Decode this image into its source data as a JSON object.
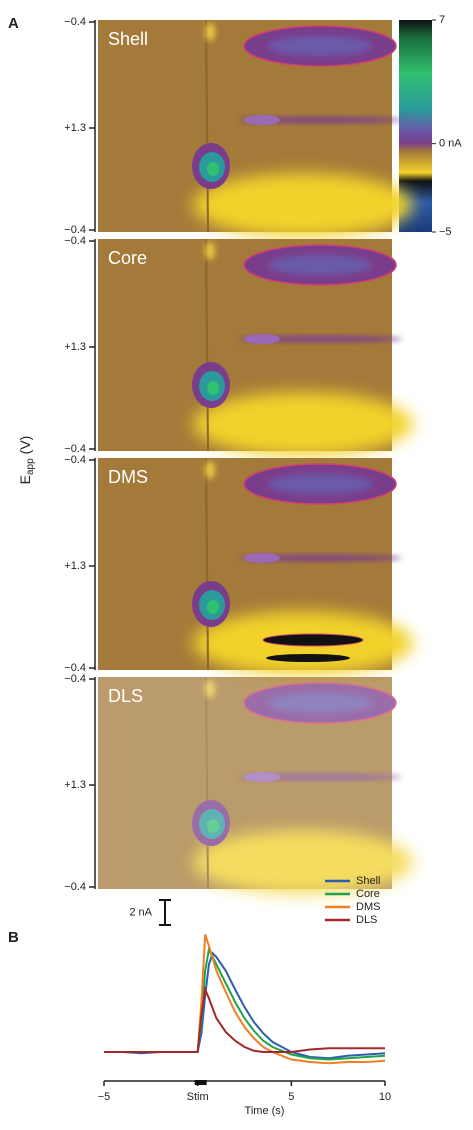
{
  "chart_data": [
    {
      "type": "heatmap",
      "panel_label": "A",
      "panels": [
        {
          "label": "Shell"
        },
        {
          "label": "Core"
        },
        {
          "label": "DMS"
        },
        {
          "label": "DLS"
        }
      ],
      "yticks": [
        {
          "value": -0.4,
          "label": "−0.4"
        },
        {
          "value": 1.3,
          "label": "+1.3"
        },
        {
          "value": -0.4,
          "label": "−0.4"
        }
      ],
      "y_label": {
        "main": "E",
        "sub": "app",
        "unit": "(V)"
      },
      "colorbar": {
        "lim": [
          -5,
          7
        ],
        "ticks": [
          {
            "value": 7,
            "label": "7"
          },
          {
            "value": 0,
            "label": "0 nA"
          },
          {
            "value": -5,
            "label": "−5"
          }
        ]
      }
    },
    {
      "type": "line",
      "panel_label": "B",
      "x": [
        -5,
        -4,
        -3,
        -2,
        -1,
        -0.5,
        0,
        0.2,
        0.4,
        0.6,
        0.8,
        1,
        1.5,
        2,
        2.5,
        3,
        3.5,
        4,
        5,
        6,
        7,
        8,
        9,
        10
      ],
      "series": [
        {
          "name": "Shell",
          "color": "#2b5fb0",
          "values": [
            0,
            0,
            -0.1,
            0,
            0,
            0,
            0,
            1.5,
            4.5,
            7,
            7.9,
            7.6,
            6.5,
            5,
            3.6,
            2.4,
            1.5,
            0.8,
            0,
            -0.4,
            -0.5,
            -0.3,
            -0.2,
            -0.1
          ]
        },
        {
          "name": "Core",
          "color": "#22a34a",
          "values": [
            0,
            0,
            0,
            0,
            0,
            0,
            0,
            2.5,
            6.5,
            8.2,
            7.6,
            7,
            5.5,
            4,
            2.7,
            1.7,
            0.9,
            0.4,
            -0.2,
            -0.5,
            -0.6,
            -0.5,
            -0.4,
            -0.3
          ]
        },
        {
          "name": "DMS",
          "color": "#f07f22",
          "values": [
            0,
            0,
            0,
            0,
            0,
            0,
            0,
            4,
            9.4,
            8.5,
            7.5,
            6.5,
            4.8,
            3.2,
            2,
            1.1,
            0.4,
            0,
            -0.6,
            -0.8,
            -0.9,
            -0.8,
            -0.8,
            -0.7
          ]
        },
        {
          "name": "DLS",
          "color": "#a3282a",
          "values": [
            0,
            0,
            0,
            0,
            0,
            0,
            0,
            3,
            5,
            4.3,
            3.5,
            2.7,
            1.6,
            0.9,
            0.4,
            0.1,
            0,
            0,
            0,
            0.2,
            0.3,
            0.3,
            0.3,
            0.3
          ]
        }
      ],
      "xlim": [
        -5,
        10
      ],
      "xticks": [
        {
          "value": -5,
          "label": "−5"
        },
        {
          "value": 0,
          "label": "Stim"
        },
        5,
        10
      ],
      "x_label": "Time (s)",
      "ylim": [
        -1,
        10
      ],
      "scale_bar": {
        "value": 2,
        "label": "2 nA"
      }
    }
  ]
}
